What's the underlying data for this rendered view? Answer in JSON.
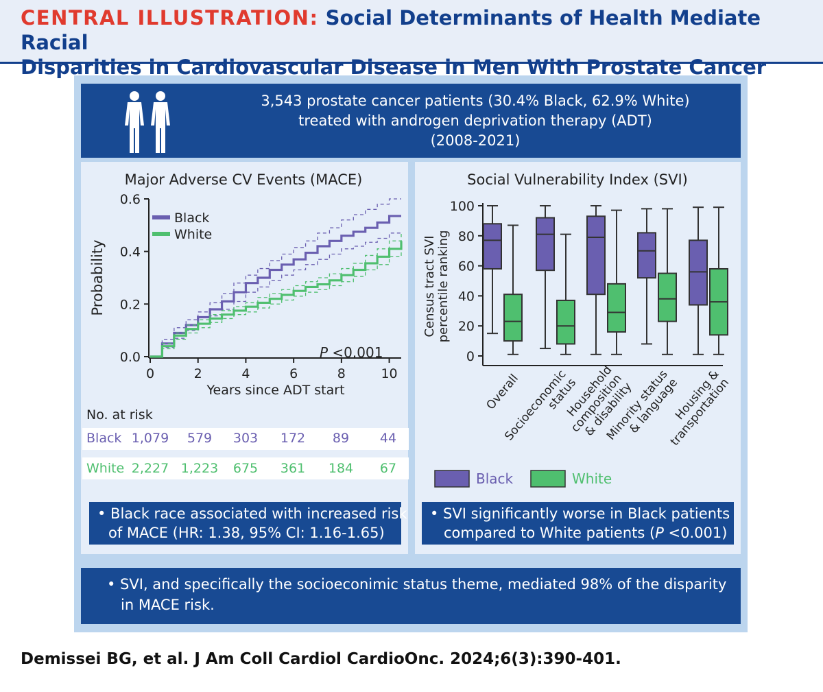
{
  "header": {
    "keyword": "CENTRAL ILLUSTRATION:",
    "title_line1": "Social Determinants of Health Mediate Racial",
    "title_line2": "Disparities in Cardiovascular Disease in Men With Prostate Cancer"
  },
  "study": {
    "line1": "3,543 prostate cancer patients (30.4% Black, 62.9% White)",
    "line2": "treated with androgen deprivation therapy (ADT)",
    "line3": "(2008-2021)",
    "icon": "people-icon"
  },
  "colors": {
    "black": "#6a5fb0",
    "white": "#4fbf6f",
    "navy": "#184a93",
    "red": "#e03a2e"
  },
  "chart_data": [
    {
      "type": "line",
      "title": "Major Adverse CV Events (MACE)",
      "xlabel": "Years since ADT start",
      "ylabel": "Probability",
      "xlim": [
        0,
        10.5
      ],
      "ylim": [
        0,
        0.6
      ],
      "xticks": [
        "0",
        "2",
        "4",
        "6",
        "8",
        "10"
      ],
      "xtick_values": [
        0,
        2,
        4,
        6,
        8,
        10
      ],
      "yticks": [
        "0.0",
        "0.2",
        "0.4",
        "0.6"
      ],
      "ytick_values": [
        0,
        0.2,
        0.4,
        0.6
      ],
      "pvalue_label": "P",
      "pvalue_text": " <0.001",
      "series": [
        {
          "name": "Black",
          "color": "#6a5fb0",
          "x": [
            0,
            0.5,
            1,
            1.5,
            2,
            2.5,
            3,
            3.5,
            4,
            4.5,
            5,
            5.5,
            6,
            6.5,
            7,
            7.5,
            8,
            8.5,
            9,
            9.5,
            10,
            10.5
          ],
          "y": [
            0,
            0.05,
            0.09,
            0.12,
            0.15,
            0.18,
            0.21,
            0.245,
            0.28,
            0.3,
            0.33,
            0.35,
            0.37,
            0.395,
            0.42,
            0.44,
            0.46,
            0.475,
            0.49,
            0.51,
            0.535,
            0.535
          ],
          "lower": [
            0,
            0.035,
            0.07,
            0.1,
            0.125,
            0.155,
            0.18,
            0.21,
            0.245,
            0.265,
            0.29,
            0.31,
            0.33,
            0.35,
            0.37,
            0.39,
            0.41,
            0.42,
            0.435,
            0.45,
            0.47,
            0.47
          ],
          "upper": [
            0,
            0.065,
            0.11,
            0.14,
            0.17,
            0.205,
            0.24,
            0.28,
            0.31,
            0.335,
            0.365,
            0.39,
            0.415,
            0.44,
            0.47,
            0.49,
            0.52,
            0.54,
            0.56,
            0.58,
            0.6,
            0.6
          ]
        },
        {
          "name": "White",
          "color": "#4fbf6f",
          "x": [
            0,
            0.5,
            1,
            1.5,
            2,
            2.5,
            3,
            3.5,
            4,
            4.5,
            5,
            5.5,
            6,
            6.5,
            7,
            7.5,
            8,
            8.5,
            9,
            9.5,
            10,
            10.5
          ],
          "y": [
            0,
            0.04,
            0.08,
            0.105,
            0.125,
            0.145,
            0.16,
            0.175,
            0.19,
            0.205,
            0.22,
            0.235,
            0.25,
            0.265,
            0.275,
            0.29,
            0.31,
            0.33,
            0.355,
            0.38,
            0.41,
            0.44
          ],
          "lower": [
            0,
            0.03,
            0.065,
            0.09,
            0.11,
            0.13,
            0.145,
            0.16,
            0.17,
            0.185,
            0.2,
            0.215,
            0.23,
            0.245,
            0.255,
            0.27,
            0.285,
            0.305,
            0.33,
            0.35,
            0.38,
            0.4
          ],
          "upper": [
            0,
            0.05,
            0.09,
            0.12,
            0.14,
            0.16,
            0.175,
            0.19,
            0.205,
            0.225,
            0.24,
            0.255,
            0.27,
            0.285,
            0.3,
            0.315,
            0.335,
            0.355,
            0.385,
            0.41,
            0.44,
            0.47
          ]
        }
      ]
    },
    {
      "type": "box",
      "title": "Social Vulnerability Index (SVI)",
      "ylabel_line1": "Census tract SVI",
      "ylabel_line2": "percentile ranking",
      "ylim": [
        0,
        100
      ],
      "yticks": [
        "0",
        "20",
        "40",
        "60",
        "80",
        "100"
      ],
      "ytick_values": [
        0,
        20,
        40,
        60,
        80,
        100
      ],
      "categories": [
        [
          "Overall"
        ],
        [
          "Socioeconomic",
          "status"
        ],
        [
          "Household",
          "composition",
          "& disability"
        ],
        [
          "Minority status",
          "& language"
        ],
        [
          "Housing &",
          "transportation"
        ]
      ],
      "series": [
        {
          "name": "Black",
          "color": "#6a5fb0",
          "boxes": [
            {
              "min": 15,
              "q1": 58,
              "median": 77,
              "q3": 88,
              "max": 100
            },
            {
              "min": 5,
              "q1": 57,
              "median": 81,
              "q3": 92,
              "max": 100
            },
            {
              "min": 1,
              "q1": 41,
              "median": 79,
              "q3": 93,
              "max": 100
            },
            {
              "min": 8,
              "q1": 52,
              "median": 70,
              "q3": 82,
              "max": 98
            },
            {
              "min": 1,
              "q1": 34,
              "median": 56,
              "q3": 77,
              "max": 99
            }
          ]
        },
        {
          "name": "White",
          "color": "#4fbf6f",
          "boxes": [
            {
              "min": 1,
              "q1": 10,
              "median": 23,
              "q3": 41,
              "max": 87
            },
            {
              "min": 1,
              "q1": 8,
              "median": 20,
              "q3": 37,
              "max": 81
            },
            {
              "min": 1,
              "q1": 16,
              "median": 29,
              "q3": 48,
              "max": 97
            },
            {
              "min": 1,
              "q1": 23,
              "median": 38,
              "q3": 55,
              "max": 98
            },
            {
              "min": 1,
              "q1": 14,
              "median": 36,
              "q3": 58,
              "max": 99
            }
          ]
        }
      ]
    }
  ],
  "risk_table": {
    "header": "No. at risk",
    "rows": [
      {
        "label": "Black",
        "values": [
          "1,079",
          "579",
          "303",
          "172",
          "89",
          "44"
        ]
      },
      {
        "label": "White",
        "values": [
          "2,227",
          "1,223",
          "675",
          "361",
          "184",
          "67"
        ]
      }
    ]
  },
  "findings": {
    "left_line1": "• Black race associated with increased risk",
    "left_line2": "of MACE (HR: 1.38, 95% CI: 1.16-1.65)",
    "right_line1": "• SVI significantly worse in Black patients",
    "right_line2_prefix": "compared to White patients (",
    "right_line2_p": "P",
    "right_line2_suffix": " <0.001)",
    "bottom_line1": "• SVI, and specifically the socioeconimic status theme, mediated 98% of the disparity",
    "bottom_line2": "in MACE risk."
  },
  "citation": "Demissei BG, et al. J Am Coll Cardiol CardioOnc. 2024;6(3):390-401."
}
